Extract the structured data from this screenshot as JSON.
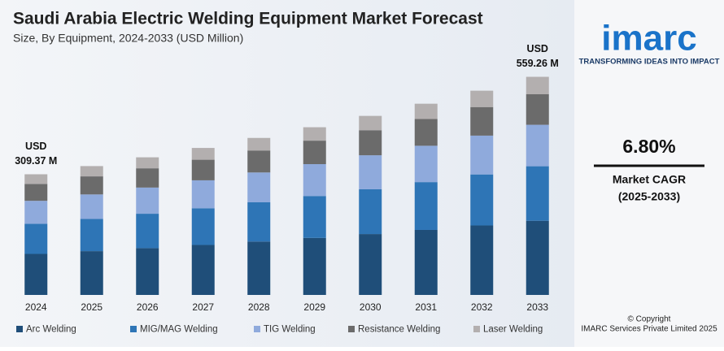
{
  "chart_data": {
    "type": "stacked-bar",
    "title": "Saudi Arabia Electric Welding Equipment Market Forecast",
    "subtitle": "Size, By Equipment, 2024-2033 (USD Million)",
    "categories": [
      "2024",
      "2025",
      "2026",
      "2027",
      "2028",
      "2029",
      "2030",
      "2031",
      "2032",
      "2033"
    ],
    "series": [
      {
        "name": "Arc Welding",
        "color": "#1f4e79",
        "values": [
          105.2,
          112.3,
          120.0,
          128.1,
          136.9,
          146.2,
          156.1,
          166.7,
          178.1,
          190.2
        ]
      },
      {
        "name": "MIG/MAG Welding",
        "color": "#2e75b6",
        "values": [
          77.3,
          82.6,
          88.2,
          94.2,
          100.6,
          107.5,
          114.8,
          122.6,
          130.9,
          139.8
        ]
      },
      {
        "name": "TIG Welding",
        "color": "#8faadc",
        "values": [
          58.8,
          62.8,
          67.1,
          71.6,
          76.5,
          81.7,
          87.2,
          93.2,
          99.5,
          106.3
        ]
      },
      {
        "name": "Resistance Welding",
        "color": "#6b6b6b",
        "values": [
          43.3,
          46.3,
          49.4,
          52.8,
          56.4,
          60.2,
          64.3,
          68.6,
          73.3,
          78.3
        ]
      },
      {
        "name": "Laser Welding",
        "color": "#b3afaf",
        "values": [
          24.8,
          26.4,
          28.2,
          30.2,
          32.2,
          34.4,
          36.7,
          39.2,
          41.9,
          44.7
        ]
      }
    ],
    "ylim": [
      0,
      600
    ],
    "annotations": [
      {
        "category": "2024",
        "text": [
          "USD",
          "309.37 M"
        ]
      },
      {
        "category": "2033",
        "text": [
          "USD",
          "559.26 M"
        ]
      }
    ]
  },
  "sidebar": {
    "logo": "imarc",
    "tagline": "TRANSFORMING IDEAS INTO IMPACT",
    "cagr": "6.80%",
    "cagr_label": [
      "Market CAGR",
      "(2025-2033)"
    ],
    "copyright": [
      "© Copyright",
      "IMARC Services Private Limited 2025"
    ]
  }
}
